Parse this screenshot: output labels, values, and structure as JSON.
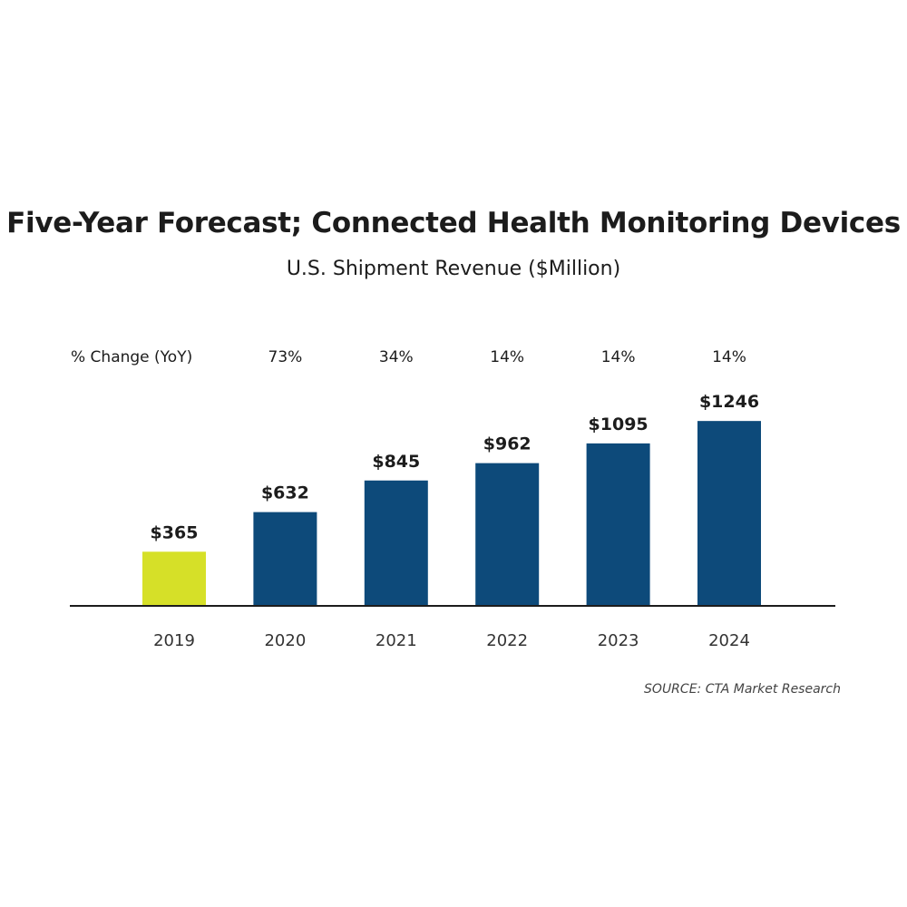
{
  "chart_data": {
    "type": "bar",
    "title": "Five-Year Forecast; Connected Health Monitoring Devices",
    "subtitle": "U.S. Shipment Revenue ($Million)",
    "categories": [
      "2019",
      "2020",
      "2021",
      "2022",
      "2023",
      "2024"
    ],
    "values": [
      365,
      632,
      845,
      962,
      1095,
      1246
    ],
    "value_labels": [
      "$365",
      "$632",
      "$845",
      "$962",
      "$1095",
      "$1246"
    ],
    "yoy_label": "% Change (YoY)",
    "yoy_change": [
      "",
      "73%",
      "34%",
      "14%",
      "14%",
      "14%"
    ],
    "colors": [
      "#d6e028",
      "#0d4a7a",
      "#0d4a7a",
      "#0d4a7a",
      "#0d4a7a",
      "#0d4a7a"
    ],
    "grid": false,
    "legend": "none",
    "ylim": [
      0,
      1400
    ]
  },
  "source": "SOURCE: CTA Market Research"
}
